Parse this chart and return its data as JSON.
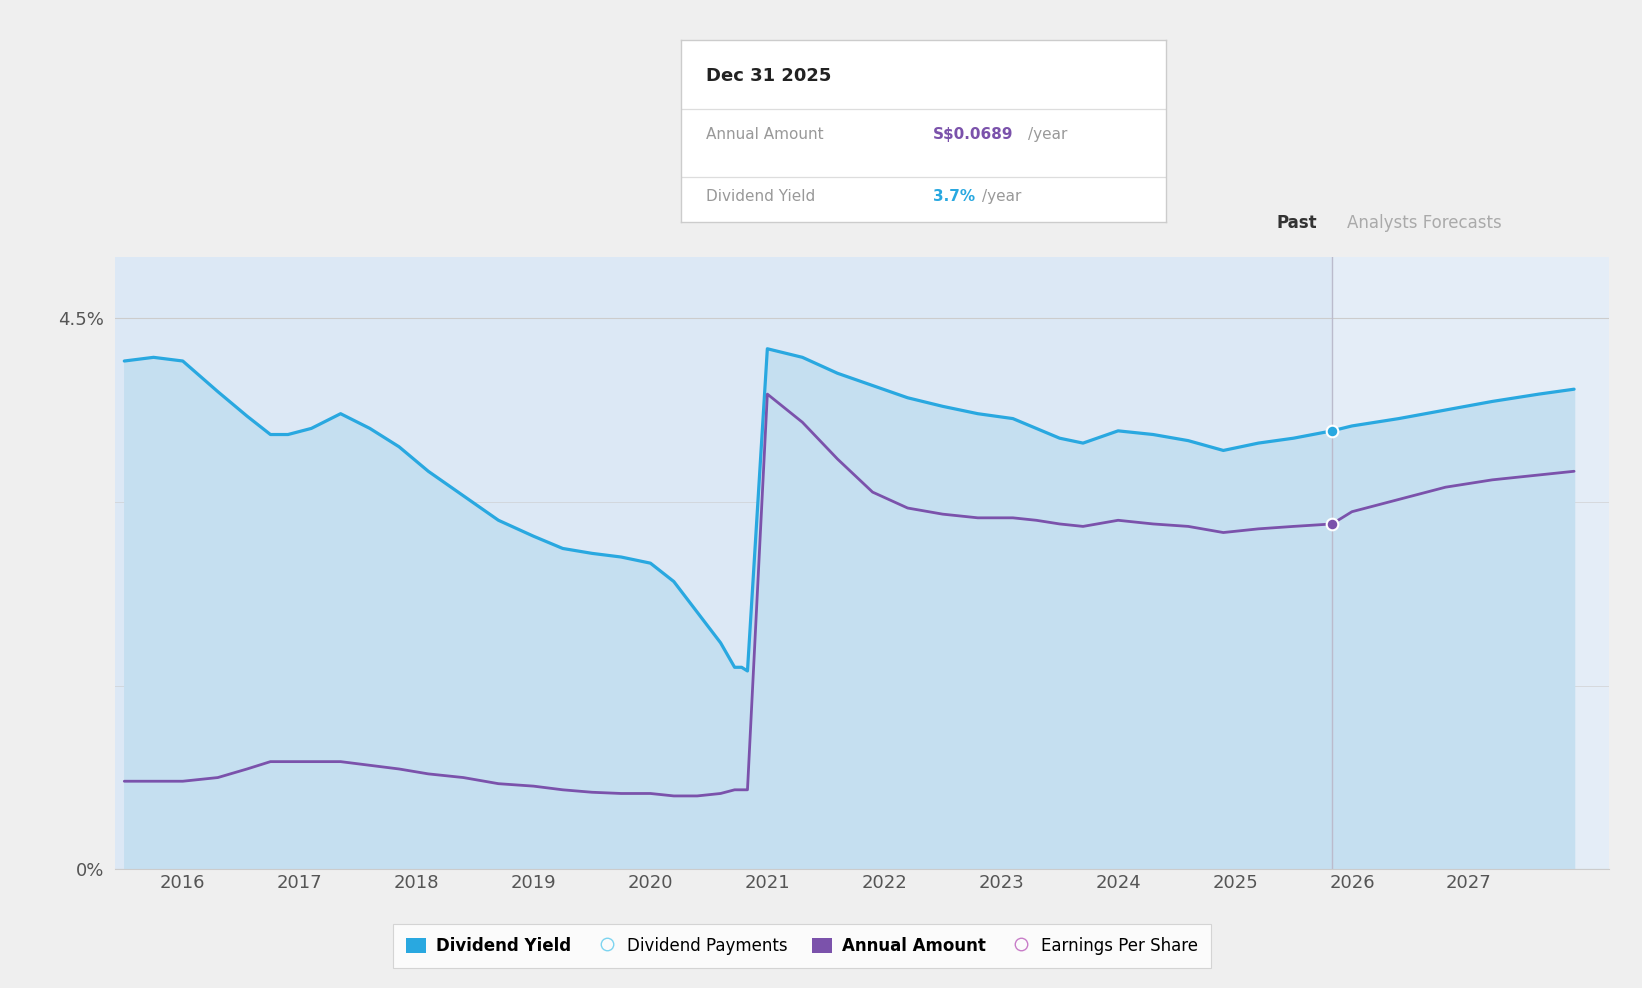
{
  "bg_color": "#efefef",
  "plot_bg_color": "#dce8f5",
  "forecast_bg_color": "#e4edf7",
  "ylim": [
    0,
    5.0
  ],
  "forecast_start_x": 2025.83,
  "tooltip": {
    "date": "Dec 31 2025",
    "annual_amount_label": "Annual Amount",
    "annual_amount_value": "S$0.0689",
    "annual_amount_unit": "/year",
    "dividend_yield_label": "Dividend Yield",
    "dividend_yield_value": "3.7%",
    "dividend_yield_unit": "/year"
  },
  "past_label": "Past",
  "forecast_label": "Analysts Forecasts",
  "dividend_yield_x": [
    2015.5,
    2015.75,
    2016.0,
    2016.3,
    2016.55,
    2016.75,
    2016.9,
    2017.1,
    2017.35,
    2017.6,
    2017.85,
    2018.1,
    2018.4,
    2018.7,
    2019.0,
    2019.25,
    2019.5,
    2019.75,
    2020.0,
    2020.2,
    2020.4,
    2020.6,
    2020.72,
    2020.78,
    2020.83,
    2021.0,
    2021.3,
    2021.6,
    2021.9,
    2022.2,
    2022.5,
    2022.8,
    2023.1,
    2023.3,
    2023.5,
    2023.7,
    2024.0,
    2024.3,
    2024.6,
    2024.9,
    2025.2,
    2025.5,
    2025.83,
    2026.0,
    2026.4,
    2026.8,
    2027.2,
    2027.6,
    2027.9
  ],
  "dividend_yield_y": [
    4.15,
    4.18,
    4.15,
    3.9,
    3.7,
    3.55,
    3.55,
    3.6,
    3.72,
    3.6,
    3.45,
    3.25,
    3.05,
    2.85,
    2.72,
    2.62,
    2.58,
    2.55,
    2.5,
    2.35,
    2.1,
    1.85,
    1.65,
    1.65,
    1.62,
    4.25,
    4.18,
    4.05,
    3.95,
    3.85,
    3.78,
    3.72,
    3.68,
    3.6,
    3.52,
    3.48,
    3.58,
    3.55,
    3.5,
    3.42,
    3.48,
    3.52,
    3.58,
    3.62,
    3.68,
    3.75,
    3.82,
    3.88,
    3.92
  ],
  "dividend_yield_color": "#29a8e0",
  "dividend_yield_fill": "#c5dff0",
  "dividend_yield_lw": 2.3,
  "annual_amount_x": [
    2015.5,
    2015.75,
    2016.0,
    2016.3,
    2016.55,
    2016.75,
    2016.9,
    2017.1,
    2017.35,
    2017.6,
    2017.85,
    2018.1,
    2018.4,
    2018.7,
    2019.0,
    2019.25,
    2019.5,
    2019.75,
    2020.0,
    2020.2,
    2020.4,
    2020.6,
    2020.72,
    2020.78,
    2020.83,
    2021.0,
    2021.3,
    2021.6,
    2021.9,
    2022.2,
    2022.5,
    2022.8,
    2023.1,
    2023.3,
    2023.5,
    2023.7,
    2024.0,
    2024.3,
    2024.6,
    2024.9,
    2025.2,
    2025.5,
    2025.83,
    2026.0,
    2026.4,
    2026.8,
    2027.2,
    2027.6,
    2027.9
  ],
  "annual_amount_y": [
    0.72,
    0.72,
    0.72,
    0.75,
    0.82,
    0.88,
    0.88,
    0.88,
    0.88,
    0.85,
    0.82,
    0.78,
    0.75,
    0.7,
    0.68,
    0.65,
    0.63,
    0.62,
    0.62,
    0.6,
    0.6,
    0.62,
    0.65,
    0.65,
    0.65,
    3.88,
    3.65,
    3.35,
    3.08,
    2.95,
    2.9,
    2.87,
    2.87,
    2.85,
    2.82,
    2.8,
    2.85,
    2.82,
    2.8,
    2.75,
    2.78,
    2.8,
    2.82,
    2.92,
    3.02,
    3.12,
    3.18,
    3.22,
    3.25
  ],
  "annual_amount_color": "#7b52ab",
  "annual_amount_lw": 2.0,
  "dot_x": 2025.83,
  "dot_yield_y": 3.58,
  "dot_amount_y": 2.82,
  "xticks": [
    2016,
    2017,
    2018,
    2019,
    2020,
    2021,
    2022,
    2023,
    2024,
    2025,
    2026,
    2027
  ],
  "legend_items": [
    {
      "label": "Dividend Yield",
      "color": "#29a8e0",
      "filled": true
    },
    {
      "label": "Dividend Payments",
      "color": "#7dd4f0",
      "filled": false
    },
    {
      "label": "Annual Amount",
      "color": "#7b52ab",
      "filled": true
    },
    {
      "label": "Earnings Per Share",
      "color": "#c87dc8",
      "filled": false
    }
  ]
}
